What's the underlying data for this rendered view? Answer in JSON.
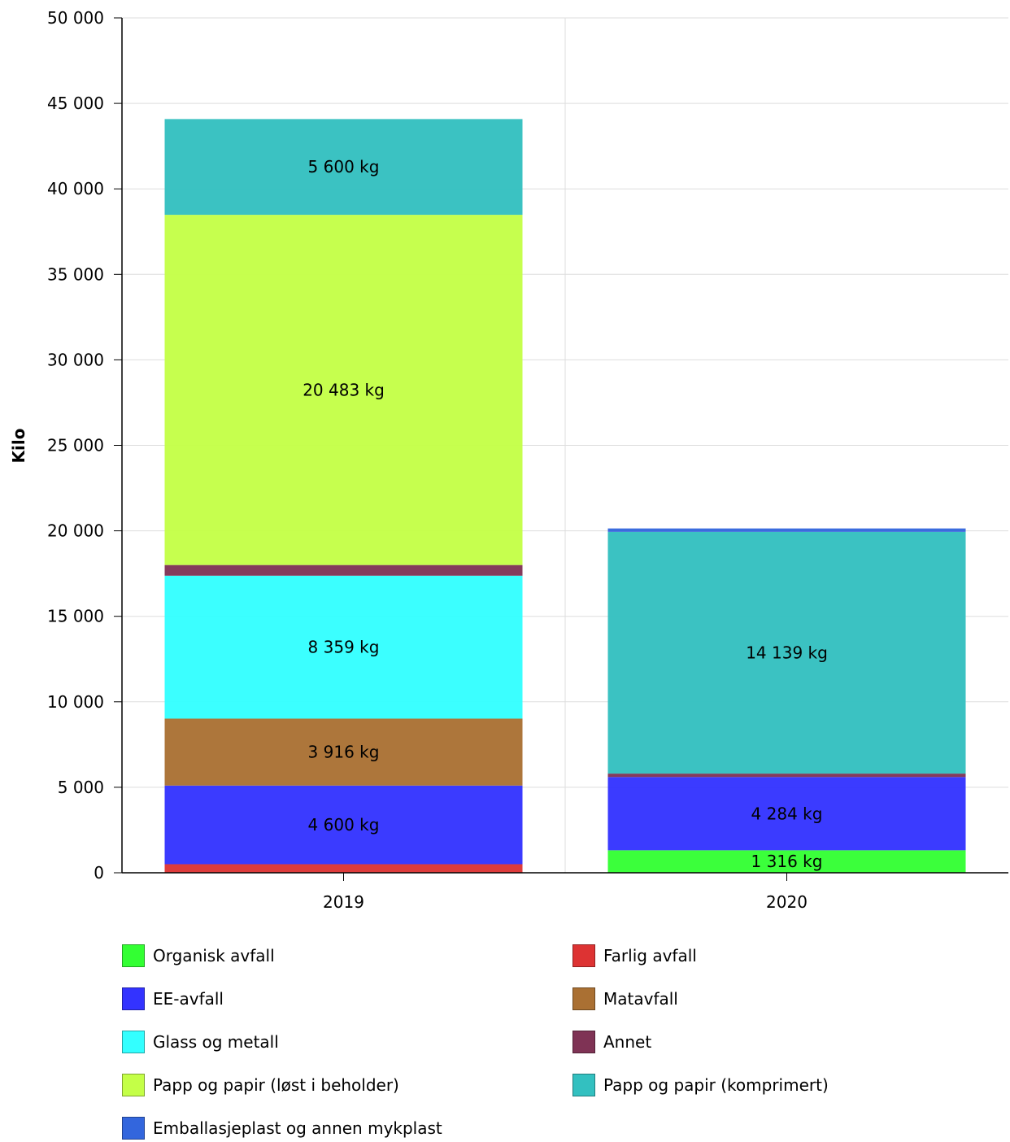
{
  "chart_data": {
    "type": "bar",
    "stacked": true,
    "ylabel": "Kilo",
    "ylim": [
      0,
      50000
    ],
    "yticks": [
      "0",
      "5 000",
      "10 000",
      "15 000",
      "20 000",
      "25 000",
      "30 000",
      "35 000",
      "40 000",
      "45 000",
      "50 000"
    ],
    "categories": [
      "2019",
      "2020"
    ],
    "grid": true,
    "legend_position": "bottom",
    "series": [
      {
        "name": "Organisk avfall",
        "color": "#33ff33",
        "values": [
          0,
          1316
        ],
        "labels": [
          "",
          "1 316 kg"
        ]
      },
      {
        "name": "Farlig avfall",
        "color": "#dd3333",
        "values": [
          500,
          0
        ],
        "labels": [
          "",
          ""
        ]
      },
      {
        "name": "EE-avfall",
        "color": "#3333ff",
        "values": [
          4600,
          4284
        ],
        "labels": [
          "4 600 kg",
          "4 284 kg"
        ]
      },
      {
        "name": "Matavfall",
        "color": "#aa7033",
        "values": [
          3916,
          0
        ],
        "labels": [
          "3 916 kg",
          ""
        ]
      },
      {
        "name": "Glass og metall",
        "color": "#33ffff",
        "values": [
          8359,
          0
        ],
        "labels": [
          "8 359 kg",
          ""
        ]
      },
      {
        "name": "Annet",
        "color": "#7f3355",
        "values": [
          625,
          200
        ],
        "labels": [
          "",
          ""
        ]
      },
      {
        "name": "Papp og papir (løst i beholder)",
        "color": "#c4ff47",
        "values": [
          20483,
          0
        ],
        "labels": [
          "20 483 kg",
          ""
        ]
      },
      {
        "name": "Papp og papir (komprimert)",
        "color": "#33c0c0",
        "values": [
          5600,
          14139
        ],
        "labels": [
          "5 600 kg",
          "14 139 kg"
        ]
      },
      {
        "name": "Emballasjeplast og annen mykplast",
        "color": "#3366dd",
        "values": [
          0,
          200
        ],
        "labels": [
          "",
          ""
        ]
      }
    ]
  }
}
